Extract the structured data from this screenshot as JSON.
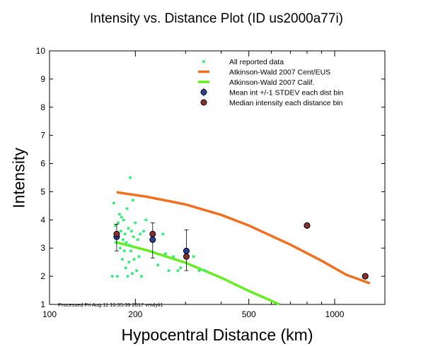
{
  "chart_data": {
    "type": "scatter",
    "title": "Intensity vs. Distance Plot (ID us2000a77i)",
    "xlabel": "Hypocentral Distance (km)",
    "ylabel": "Intensity",
    "xscale": "log",
    "xlim": [
      100,
      1500
    ],
    "ylim": [
      1,
      10
    ],
    "x_ticks": [
      100,
      200,
      500,
      1000
    ],
    "y_ticks": [
      1,
      2,
      3,
      4,
      5,
      6,
      7,
      8,
      9,
      10
    ],
    "grid": false,
    "legend_position": "top-right",
    "footer": "Processed Fri Aug 11 16:35:39 2017 vmdyli1",
    "series": [
      {
        "name": "All reported data",
        "kind": "points",
        "color": "#33ee77",
        "points": [
          [
            166,
            2.0
          ],
          [
            168,
            4.6
          ],
          [
            170,
            3.8
          ],
          [
            171,
            3.2
          ],
          [
            172,
            3.5
          ],
          [
            173,
            2.0
          ],
          [
            174,
            3.9
          ],
          [
            176,
            4.2
          ],
          [
            177,
            3.0
          ],
          [
            178,
            3.6
          ],
          [
            179,
            4.1
          ],
          [
            180,
            2.6
          ],
          [
            181,
            3.3
          ],
          [
            182,
            4.0
          ],
          [
            183,
            2.9
          ],
          [
            184,
            3.5
          ],
          [
            185,
            2.3
          ],
          [
            186,
            3.2
          ],
          [
            187,
            4.4
          ],
          [
            188,
            2.0
          ],
          [
            189,
            3.7
          ],
          [
            190,
            2.5
          ],
          [
            191,
            3.1
          ],
          [
            192,
            5.5
          ],
          [
            193,
            2.9
          ],
          [
            194,
            3.6
          ],
          [
            195,
            2.1
          ],
          [
            196,
            4.7
          ],
          [
            197,
            3.4
          ],
          [
            198,
            2.6
          ],
          [
            200,
            3.9
          ],
          [
            202,
            2.2
          ],
          [
            204,
            3.3
          ],
          [
            206,
            2.7
          ],
          [
            208,
            3.5
          ],
          [
            210,
            2.0
          ],
          [
            214,
            3.6
          ],
          [
            218,
            4.0
          ],
          [
            230,
            3.4
          ],
          [
            240,
            2.4
          ],
          [
            250,
            3.5
          ],
          [
            255,
            2.8
          ],
          [
            262,
            2.2
          ],
          [
            272,
            2.7
          ],
          [
            282,
            2.2
          ],
          [
            288,
            2.3
          ],
          [
            300,
            2.9
          ],
          [
            320,
            2.7
          ],
          [
            335,
            2.2
          ],
          [
            350,
            2.2
          ],
          [
            800,
            3.8
          ],
          [
            1280,
            2.0
          ]
        ]
      },
      {
        "name": "Atkinson-Wald 2007 Cent/EUS",
        "kind": "line",
        "color": "#f07020",
        "points": [
          [
            172,
            4.98
          ],
          [
            220,
            4.82
          ],
          [
            300,
            4.55
          ],
          [
            400,
            4.18
          ],
          [
            500,
            3.8
          ],
          [
            700,
            3.12
          ],
          [
            900,
            2.55
          ],
          [
            1100,
            2.05
          ],
          [
            1330,
            1.75
          ]
        ]
      },
      {
        "name": "Atkinson-Wald 2007 Calif.",
        "kind": "line",
        "color": "#66ee22",
        "points": [
          [
            172,
            3.2
          ],
          [
            220,
            2.92
          ],
          [
            300,
            2.48
          ],
          [
            400,
            1.95
          ],
          [
            500,
            1.48
          ],
          [
            600,
            1.13
          ],
          [
            640,
            1.0
          ]
        ]
      },
      {
        "name": "Mean int +/-1 STDEV each dist bin",
        "kind": "errorbar",
        "color": "#2a3f99",
        "points": [
          {
            "x": 172,
            "y": 3.4,
            "lo": 2.9,
            "hi": 3.85
          },
          {
            "x": 230,
            "y": 3.3,
            "lo": 2.65,
            "hi": 3.9
          },
          {
            "x": 302,
            "y": 2.9,
            "lo": 2.2,
            "hi": 3.65
          },
          {
            "x": 800,
            "y": 3.8,
            "lo": 3.8,
            "hi": 3.8
          },
          {
            "x": 1280,
            "y": 2.0,
            "lo": 2.0,
            "hi": 2.0
          }
        ]
      },
      {
        "name": "Median intensity each distance bin",
        "kind": "points",
        "color": "#8b2e2e",
        "points": [
          [
            172,
            3.5
          ],
          [
            230,
            3.5
          ],
          [
            302,
            2.7
          ],
          [
            800,
            3.8
          ],
          [
            1280,
            2.0
          ]
        ]
      }
    ]
  }
}
